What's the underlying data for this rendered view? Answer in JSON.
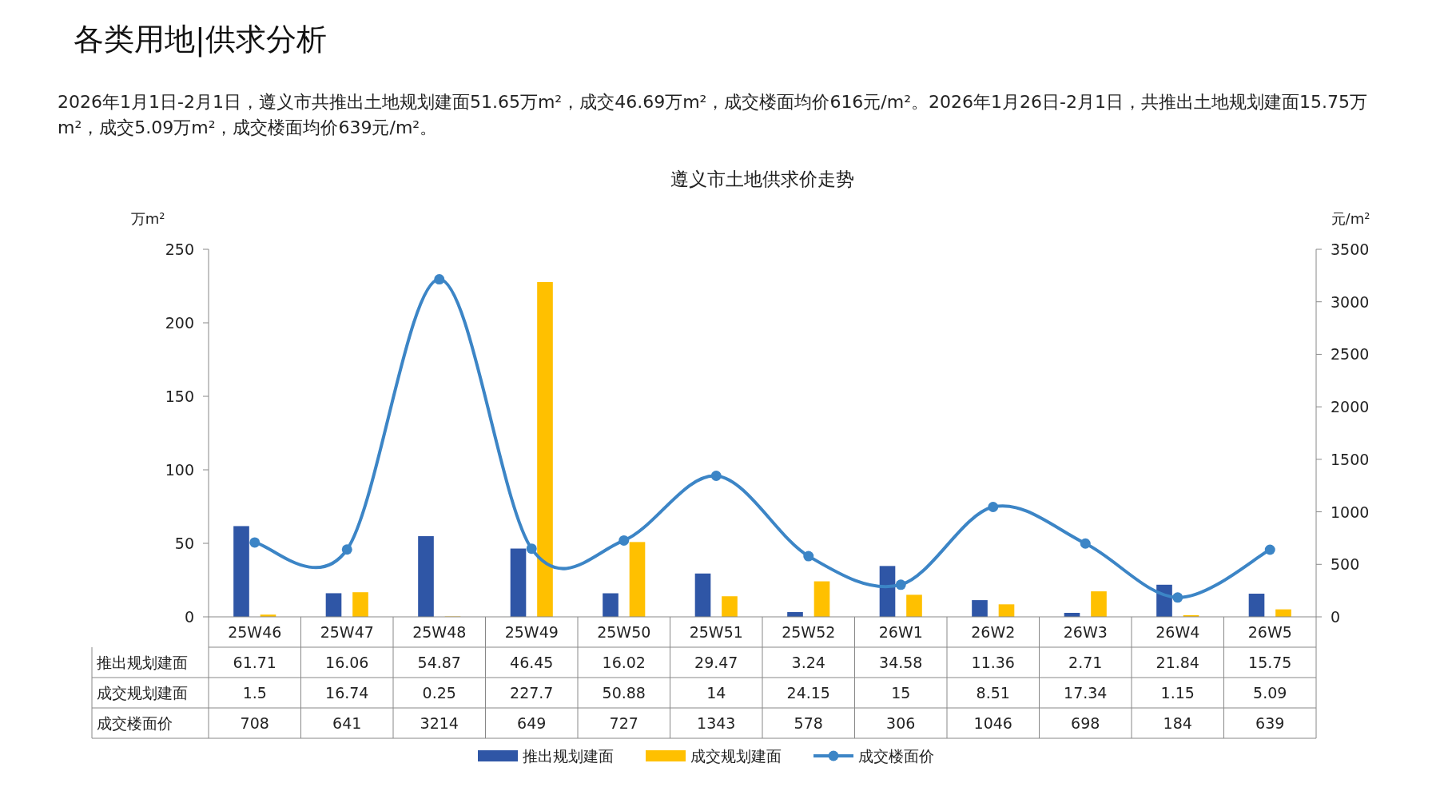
{
  "chart_data": {
    "type": "bar",
    "title": "遵义市土地供求价走势",
    "annotations": [
      "各类用地|供求分析",
      "2026年1月1日-2月1日，遵义市共推出土地规划建面51.65万m²，成交46.69万m²，成交楼面均价616元/m²。2026年1月26日-2月1日，共推出土地规划建面15.75万m²，成交5.09万m²，成交楼面均价639元/m²。"
    ],
    "ylabel": "万m²",
    "y2label": "元/m²",
    "categories": [
      "25W46",
      "25W47",
      "25W48",
      "25W49",
      "25W50",
      "25W51",
      "25W52",
      "26W1",
      "26W2",
      "26W3",
      "26W4",
      "26W5"
    ],
    "series": [
      {
        "name": "推出规划建面",
        "color": "#2f56a6",
        "values": [
          61.71,
          16.06,
          54.87,
          46.45,
          16.02,
          29.47,
          3.24,
          34.58,
          11.36,
          2.71,
          21.84,
          15.75
        ],
        "value_labels": [
          "61.71",
          "16.06",
          "54.87",
          "46.45",
          "16.02",
          "29.47",
          "3.24",
          "34.58",
          "11.36",
          "2.71",
          "21.84",
          "15.75"
        ]
      },
      {
        "name": "成交规划建面",
        "color": "#ffc000",
        "values": [
          1.5,
          16.74,
          0.25,
          227.7,
          50.88,
          14,
          24.15,
          15,
          8.51,
          17.34,
          1.15,
          5.09
        ]
      },
      {
        "name": "成交楼面价",
        "type": "line",
        "axis": "y2",
        "color": "#3c85c6",
        "marker": "circle",
        "values": [
          708,
          641,
          3214,
          649,
          727,
          1343,
          578,
          306,
          1046,
          698,
          184,
          639
        ]
      }
    ],
    "ylim": [
      0,
      250
    ],
    "yticks": [
      0,
      50,
      100,
      150,
      200,
      250
    ],
    "y2lim": [
      0,
      3500
    ],
    "y2ticks": [
      0,
      500,
      1000,
      1500,
      2000,
      2500,
      3000,
      3500
    ],
    "data_labels": true,
    "grid": false,
    "legend": "bottom"
  }
}
